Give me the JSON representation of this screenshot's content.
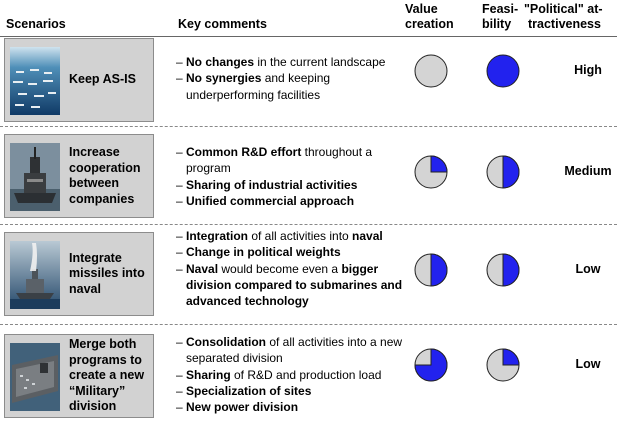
{
  "headers": {
    "scenarios": "Scenarios",
    "key_comments": "Key comments",
    "value_creation_1": "Value",
    "value_creation_2": "creation",
    "feasibility_1": "Feasi-",
    "feasibility_2": "bility",
    "political_1": "\"Political\" at-",
    "political_2": "tractiveness"
  },
  "colors": {
    "fill": "#2222ee",
    "empty": "#d4d4d4",
    "card": "#d2d2d2"
  },
  "scenarios": [
    {
      "label": "Keep AS-IS",
      "thumb_icon": "fleet-icon",
      "comments": [
        {
          "parts": [
            {
              "b": true,
              "t": "No changes"
            },
            {
              "b": false,
              "t": " in the current landscape"
            }
          ]
        },
        {
          "parts": [
            {
              "b": true,
              "t": "No synergies"
            },
            {
              "b": false,
              "t": " and keeping underperforming facilities"
            }
          ]
        }
      ],
      "value_creation": 0,
      "feasibility": 1,
      "political": "High"
    },
    {
      "label": "Increase cooperation between companies",
      "thumb_icon": "ship-icon",
      "comments": [
        {
          "parts": [
            {
              "b": true,
              "t": "Common R&D effort"
            },
            {
              "b": false,
              "t": " throughout a program"
            }
          ]
        },
        {
          "parts": [
            {
              "b": true,
              "t": "Sharing of industrial activities"
            }
          ]
        },
        {
          "parts": [
            {
              "b": true,
              "t": "Unified commercial approach"
            }
          ]
        }
      ],
      "value_creation": 0.25,
      "feasibility": 0.5,
      "political": "Medium"
    },
    {
      "label": "Integrate missiles into naval",
      "thumb_icon": "missile-ship-icon",
      "comments": [
        {
          "parts": [
            {
              "b": true,
              "t": "Integration"
            },
            {
              "b": false,
              "t": " of all activities into "
            },
            {
              "b": true,
              "t": "naval"
            }
          ]
        },
        {
          "parts": [
            {
              "b": true,
              "t": "Change in political weights"
            }
          ]
        },
        {
          "parts": [
            {
              "b": true,
              "t": "Naval"
            },
            {
              "b": false,
              "t": " would become even a "
            },
            {
              "b": true,
              "t": "bigger division compared to submarines and advanced technology"
            }
          ]
        }
      ],
      "value_creation": 0.5,
      "feasibility": 0.5,
      "political": "Low"
    },
    {
      "label": "Merge both programs to create a new “Military” division",
      "thumb_icon": "carrier-icon",
      "comments": [
        {
          "parts": [
            {
              "b": true,
              "t": "Consolidation"
            },
            {
              "b": false,
              "t": " of all activities into a new separated division"
            }
          ]
        },
        {
          "parts": [
            {
              "b": true,
              "t": "Sharing"
            },
            {
              "b": false,
              "t": " of R&D and production load"
            }
          ]
        },
        {
          "parts": [
            {
              "b": true,
              "t": "Specialization of sites"
            }
          ]
        },
        {
          "parts": [
            {
              "b": true,
              "t": "New power division"
            }
          ]
        }
      ],
      "value_creation": 0.75,
      "feasibility": 0.25,
      "political": "Low"
    }
  ]
}
